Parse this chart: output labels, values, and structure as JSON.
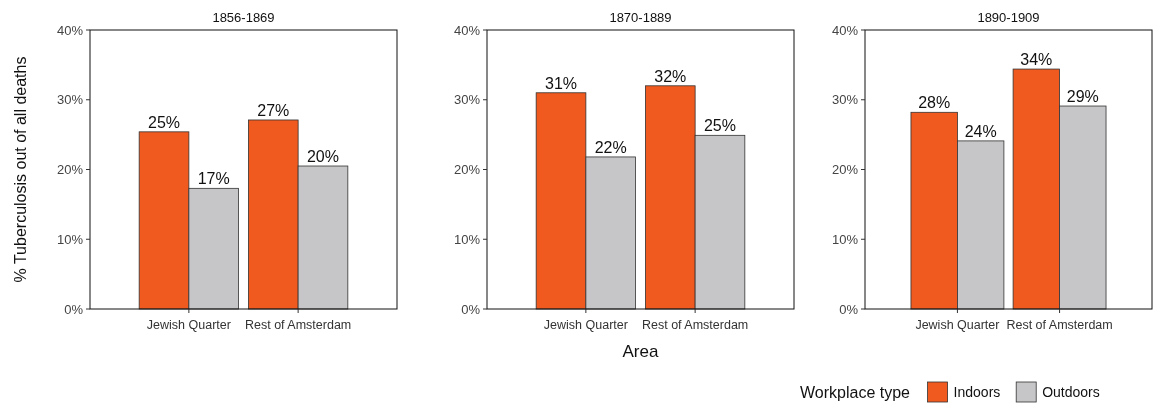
{
  "chart_data": [
    {
      "type": "bar",
      "title": "1856-1869",
      "ylabel": "% Tuberculosis out of all deaths",
      "categories": [
        "Jewish Quarter",
        "Rest of Amsterdam"
      ],
      "series": [
        {
          "color": "#f05a1e",
          "values": [
            25.4,
            27.1
          ],
          "value_labels": [
            "25%",
            "27%"
          ]
        },
        {
          "color": "#c6c6c8",
          "values": [
            17.3,
            20.5
          ],
          "value_labels": [
            "17%",
            "20%"
          ]
        }
      ],
      "ylim": [
        0,
        40
      ],
      "yticks": [
        {
          "value": 0,
          "label": "0%"
        },
        {
          "value": 10,
          "label": "10%"
        },
        {
          "value": 20,
          "label": "20%"
        },
        {
          "value": 30,
          "label": "30%"
        },
        {
          "value": 40,
          "label": "40%"
        }
      ],
      "grid": false
    },
    {
      "type": "bar",
      "title": "1870-1889",
      "xlabel": "Area",
      "categories": [
        "Jewish Quarter",
        "Rest of Amsterdam"
      ],
      "series": [
        {
          "color": "#f05a1e",
          "values": [
            31.0,
            32.0
          ],
          "value_labels": [
            "31%",
            "32%"
          ]
        },
        {
          "color": "#c6c6c8",
          "values": [
            21.8,
            24.9
          ],
          "value_labels": [
            "22%",
            "25%"
          ]
        }
      ],
      "ylim": [
        0,
        40
      ],
      "yticks": [
        {
          "value": 0,
          "label": "0%"
        },
        {
          "value": 10,
          "label": "10%"
        },
        {
          "value": 20,
          "label": "20%"
        },
        {
          "value": 30,
          "label": "30%"
        },
        {
          "value": 40,
          "label": "40%"
        }
      ],
      "grid": false
    },
    {
      "type": "bar",
      "title": "1890-1909",
      "categories": [
        "Jewish Quarter",
        "Rest of Amsterdam"
      ],
      "legend_title": "Workplace type",
      "legend": "bottom right",
      "series": [
        {
          "name": "Indoors",
          "color": "#f05a1e",
          "values": [
            28.2,
            34.4
          ],
          "value_labels": [
            "28%",
            "34%"
          ]
        },
        {
          "name": "Outdoors",
          "color": "#c6c6c8",
          "values": [
            24.1,
            29.1
          ],
          "value_labels": [
            "24%",
            "29%"
          ]
        }
      ],
      "ylim": [
        0,
        40
      ],
      "yticks": [
        {
          "value": 0,
          "label": "0%"
        },
        {
          "value": 10,
          "label": "10%"
        },
        {
          "value": 20,
          "label": "20%"
        },
        {
          "value": 30,
          "label": "30%"
        },
        {
          "value": 40,
          "label": "40%"
        }
      ],
      "grid": false
    }
  ]
}
